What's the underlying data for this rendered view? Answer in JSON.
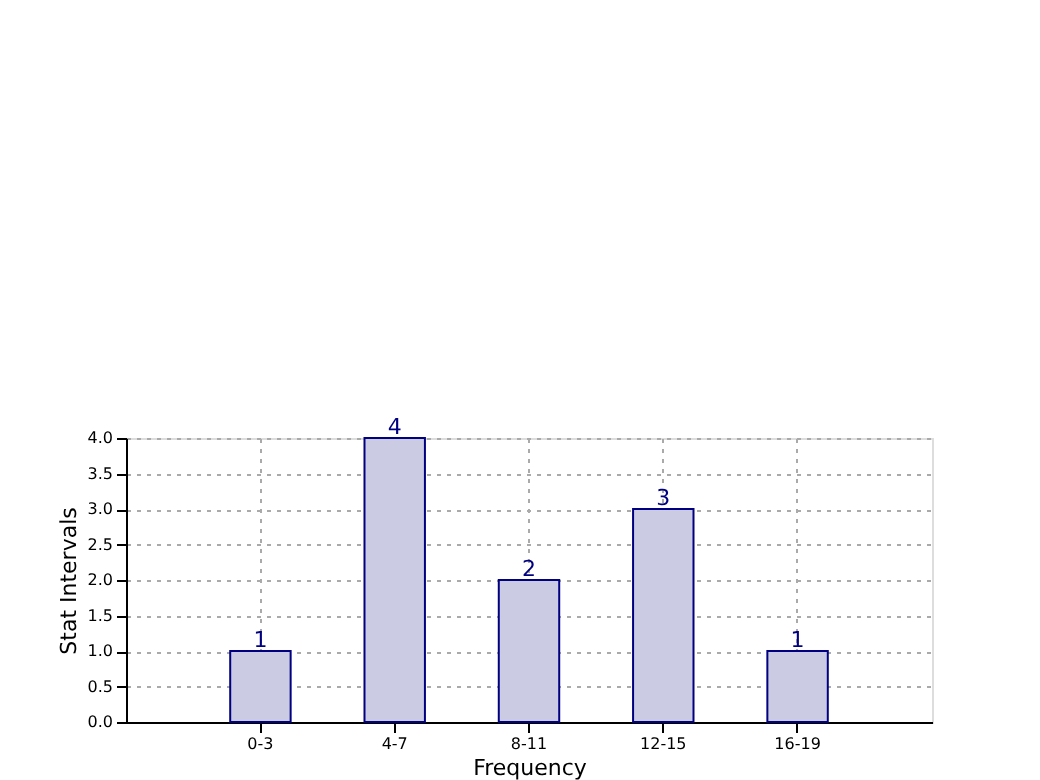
{
  "chart_data": {
    "type": "bar",
    "xlabel": "Frequency",
    "ylabel": "Stat Intervals",
    "categories": [
      "0-3",
      "4-7",
      "8-11",
      "12-15",
      "16-19"
    ],
    "values": [
      1,
      4,
      2,
      3,
      1
    ],
    "color": "#cbcbe3",
    "ylim": [
      0,
      4
    ],
    "yticks": [
      {
        "value": 0,
        "label": "0.0"
      },
      {
        "value": 0.5,
        "label": "0.5"
      },
      {
        "value": 1,
        "label": "1.0"
      },
      {
        "value": 1.5,
        "label": "1.5"
      },
      {
        "value": 2,
        "label": "2.0"
      },
      {
        "value": 2.5,
        "label": "2.5"
      },
      {
        "value": 3,
        "label": "3.0"
      },
      {
        "value": 3.5,
        "label": "3.5"
      },
      {
        "value": 4,
        "label": "4.0"
      }
    ],
    "grid": true,
    "data_labels": true
  }
}
